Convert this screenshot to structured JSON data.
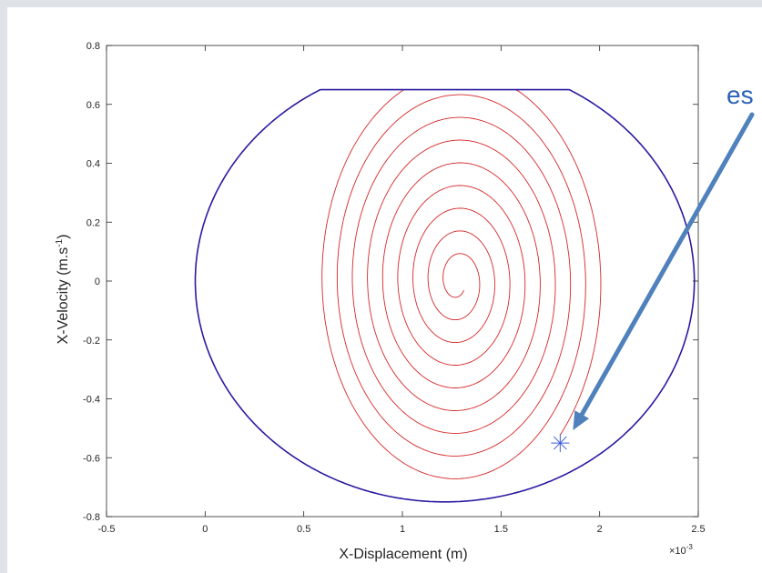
{
  "chart_data": {
    "type": "line",
    "title": "",
    "xlabel": "X-Displacement (m)",
    "ylabel_main": "X-Velocity (m.s",
    "ylabel_sup": "-1",
    "ylabel_close": ")",
    "x_exponent_label": "×10",
    "x_exponent_sup": "-3",
    "xlim": [
      -0.5,
      2.5
    ],
    "ylim": [
      -0.8,
      0.8
    ],
    "x_ticks": [
      -0.5,
      0,
      0.5,
      1,
      1.5,
      2,
      2.5
    ],
    "x_tick_labels": [
      "-0.5",
      "0",
      "0.5",
      "1",
      "1.5",
      "2",
      "2.5"
    ],
    "y_ticks": [
      -0.8,
      -0.6,
      -0.4,
      -0.2,
      0,
      0.2,
      0.4,
      0.6,
      0.8
    ],
    "y_tick_labels": [
      "-0.8",
      "-0.6",
      "-0.4",
      "-0.2",
      "0",
      "0.2",
      "0.4",
      "0.6",
      "0.8"
    ],
    "grid": false,
    "legend": "none",
    "series": [
      {
        "color": "#d62728",
        "style": "spiral",
        "center": [
          1.28,
          0.0
        ],
        "start": [
          1.8,
          -0.55
        ],
        "end": [
          1.33,
          -0.04
        ],
        "turns": 9
      },
      {
        "color": "#2a1aa0",
        "style": "closed-orbit",
        "center": [
          1.2,
          0.0
        ],
        "x_range": [
          -0.05,
          2.48
        ],
        "y_range": [
          -0.75,
          0.65
        ],
        "clipped_top_y": 0.65,
        "flat_top_x": [
          0.6,
          1.48
        ]
      }
    ],
    "markers": [
      {
        "x": 1.8,
        "y": -0.55,
        "symbol": "asterisk",
        "color": "#3b5bdb"
      }
    ],
    "annotation": {
      "text": "es",
      "arrow_color": "#4f81bd",
      "target": [
        1.8,
        -0.55
      ]
    }
  }
}
